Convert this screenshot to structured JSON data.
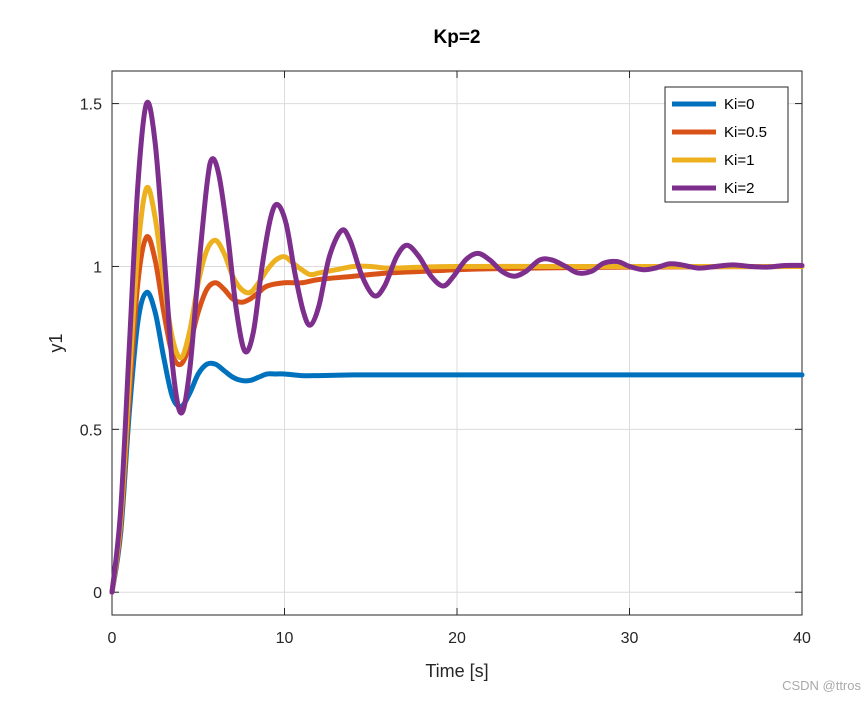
{
  "chart_data": {
    "type": "line",
    "title": "Kp=2",
    "xlabel": "Time [s]",
    "ylabel": "y1",
    "xlim": [
      0,
      40
    ],
    "ylim": [
      -0.07,
      1.6
    ],
    "grid": true,
    "x_ticks": [
      0,
      10,
      20,
      30,
      40
    ],
    "x_tick_labels": [
      "0",
      "10",
      "20",
      "30",
      "40"
    ],
    "y_ticks": [
      0,
      0.5,
      1,
      1.5
    ],
    "y_tick_labels": [
      "0",
      "0.5",
      "1",
      "1.5"
    ],
    "legend_position": "top-right",
    "series": [
      {
        "name": "Ki=0",
        "color": "#0072BD",
        "points": [
          [
            0,
            0
          ],
          [
            0.5,
            0.18
          ],
          [
            1,
            0.55
          ],
          [
            1.5,
            0.83
          ],
          [
            2,
            0.92
          ],
          [
            2.5,
            0.86
          ],
          [
            3,
            0.72
          ],
          [
            3.5,
            0.6
          ],
          [
            4,
            0.57
          ],
          [
            4.5,
            0.61
          ],
          [
            5,
            0.67
          ],
          [
            5.5,
            0.7
          ],
          [
            6,
            0.7
          ],
          [
            6.5,
            0.68
          ],
          [
            7,
            0.66
          ],
          [
            7.5,
            0.65
          ],
          [
            8,
            0.65
          ],
          [
            8.5,
            0.66
          ],
          [
            9,
            0.67
          ],
          [
            9.5,
            0.67
          ],
          [
            10,
            0.67
          ],
          [
            11,
            0.665
          ],
          [
            12,
            0.665
          ],
          [
            14,
            0.667
          ],
          [
            16,
            0.667
          ],
          [
            20,
            0.667
          ],
          [
            30,
            0.667
          ],
          [
            40,
            0.667
          ]
        ]
      },
      {
        "name": "Ki=0.5",
        "color": "#D95319",
        "points": [
          [
            0,
            0
          ],
          [
            0.5,
            0.2
          ],
          [
            1,
            0.6
          ],
          [
            1.5,
            0.95
          ],
          [
            2,
            1.09
          ],
          [
            2.5,
            1.02
          ],
          [
            3,
            0.86
          ],
          [
            3.5,
            0.73
          ],
          [
            4,
            0.7
          ],
          [
            4.5,
            0.76
          ],
          [
            5,
            0.86
          ],
          [
            5.5,
            0.93
          ],
          [
            6,
            0.95
          ],
          [
            6.5,
            0.93
          ],
          [
            7,
            0.9
          ],
          [
            7.5,
            0.89
          ],
          [
            8,
            0.9
          ],
          [
            8.5,
            0.92
          ],
          [
            9,
            0.94
          ],
          [
            10,
            0.95
          ],
          [
            11,
            0.95
          ],
          [
            12,
            0.96
          ],
          [
            14,
            0.97
          ],
          [
            16,
            0.98
          ],
          [
            18,
            0.985
          ],
          [
            20,
            0.99
          ],
          [
            22,
            0.993
          ],
          [
            26,
            0.996
          ],
          [
            30,
            0.998
          ],
          [
            40,
            1.0
          ]
        ]
      },
      {
        "name": "Ki=1",
        "color": "#EDB120",
        "points": [
          [
            0,
            0
          ],
          [
            0.5,
            0.22
          ],
          [
            1,
            0.65
          ],
          [
            1.5,
            1.05
          ],
          [
            2,
            1.24
          ],
          [
            2.5,
            1.15
          ],
          [
            3,
            0.95
          ],
          [
            3.5,
            0.78
          ],
          [
            4,
            0.72
          ],
          [
            4.5,
            0.8
          ],
          [
            5,
            0.95
          ],
          [
            5.5,
            1.05
          ],
          [
            6,
            1.08
          ],
          [
            6.5,
            1.04
          ],
          [
            7,
            0.97
          ],
          [
            7.5,
            0.93
          ],
          [
            8,
            0.92
          ],
          [
            8.5,
            0.95
          ],
          [
            9,
            0.99
          ],
          [
            9.5,
            1.02
          ],
          [
            10,
            1.03
          ],
          [
            10.5,
            1.01
          ],
          [
            11,
            0.99
          ],
          [
            11.5,
            0.975
          ],
          [
            12,
            0.98
          ],
          [
            13,
            0.99
          ],
          [
            14,
            1.0
          ],
          [
            15,
            1.0
          ],
          [
            16,
            0.995
          ],
          [
            18,
            0.998
          ],
          [
            20,
            1.0
          ],
          [
            25,
            1.0
          ],
          [
            30,
            1.0
          ],
          [
            40,
            1.0
          ]
        ]
      },
      {
        "name": "Ki=2",
        "color": "#7E2F8E",
        "points": [
          [
            0,
            0
          ],
          [
            0.5,
            0.25
          ],
          [
            1,
            0.75
          ],
          [
            1.5,
            1.25
          ],
          [
            2,
            1.5
          ],
          [
            2.5,
            1.38
          ],
          [
            3,
            1.05
          ],
          [
            3.5,
            0.7
          ],
          [
            4,
            0.55
          ],
          [
            4.5,
            0.68
          ],
          [
            5,
            0.98
          ],
          [
            5.5,
            1.25
          ],
          [
            5.8,
            1.33
          ],
          [
            6.2,
            1.28
          ],
          [
            6.7,
            1.1
          ],
          [
            7.2,
            0.87
          ],
          [
            7.7,
            0.74
          ],
          [
            8.2,
            0.8
          ],
          [
            8.7,
            1.0
          ],
          [
            9.2,
            1.15
          ],
          [
            9.6,
            1.19
          ],
          [
            10.1,
            1.13
          ],
          [
            10.6,
            0.98
          ],
          [
            11.1,
            0.86
          ],
          [
            11.5,
            0.82
          ],
          [
            12,
            0.88
          ],
          [
            12.6,
            1.03
          ],
          [
            13.3,
            1.11
          ],
          [
            13.8,
            1.08
          ],
          [
            14.5,
            0.97
          ],
          [
            15.2,
            0.91
          ],
          [
            15.8,
            0.94
          ],
          [
            16.5,
            1.03
          ],
          [
            17.1,
            1.065
          ],
          [
            17.8,
            1.03
          ],
          [
            18.5,
            0.97
          ],
          [
            19.2,
            0.94
          ],
          [
            19.8,
            0.97
          ],
          [
            20.5,
            1.02
          ],
          [
            21.2,
            1.04
          ],
          [
            21.9,
            1.02
          ],
          [
            22.6,
            0.985
          ],
          [
            23.3,
            0.97
          ],
          [
            24,
            0.985
          ],
          [
            24.8,
            1.02
          ],
          [
            25.5,
            1.02
          ],
          [
            26.3,
            1.0
          ],
          [
            27,
            0.98
          ],
          [
            27.8,
            0.985
          ],
          [
            28.5,
            1.01
          ],
          [
            29.3,
            1.015
          ],
          [
            30,
            1.0
          ],
          [
            30.8,
            0.99
          ],
          [
            31.5,
            0.995
          ],
          [
            32.3,
            1.008
          ],
          [
            33,
            1.005
          ],
          [
            34,
            0.995
          ],
          [
            35,
            1.0
          ],
          [
            36,
            1.005
          ],
          [
            37,
            1.0
          ],
          [
            38,
            0.998
          ],
          [
            39,
            1.003
          ],
          [
            40,
            1.003
          ]
        ]
      }
    ]
  },
  "footer": {
    "watermark": "CSDN @ttros"
  }
}
